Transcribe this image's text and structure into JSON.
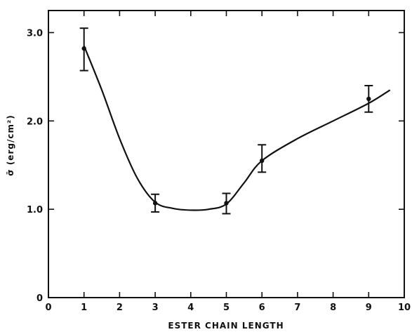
{
  "chart_data": {
    "type": "line",
    "title": "",
    "xlabel": "ESTER CHAIN LENGTH",
    "ylabel": "σ̄ (erg/cm²)",
    "xlim": [
      0,
      10
    ],
    "ylim": [
      0,
      3.25
    ],
    "x_ticks": [
      0,
      1,
      2,
      3,
      4,
      5,
      6,
      7,
      8,
      9,
      10
    ],
    "x_tick_labels": [
      "0",
      "1",
      "2",
      "3",
      "4",
      "5",
      "6",
      "7",
      "8",
      "9",
      "10"
    ],
    "y_ticks": [
      0,
      1.0,
      2.0,
      3.0
    ],
    "y_tick_labels": [
      "0",
      "1.0",
      "2.0",
      "3.0"
    ],
    "grid": false,
    "series": [
      {
        "points": [
          {
            "x": 1,
            "y": 2.82,
            "err_low": 2.57,
            "err_high": 3.05
          },
          {
            "x": 3,
            "y": 1.07,
            "err_low": 0.97,
            "err_high": 1.17
          },
          {
            "x": 5,
            "y": 1.07,
            "err_low": 0.95,
            "err_high": 1.18
          },
          {
            "x": 6,
            "y": 1.55,
            "err_low": 1.42,
            "err_high": 1.73
          },
          {
            "x": 9,
            "y": 2.25,
            "err_low": 2.1,
            "err_high": 2.4
          }
        ],
        "curve": [
          [
            1,
            2.85
          ],
          [
            1.5,
            2.35
          ],
          [
            2,
            1.8
          ],
          [
            2.5,
            1.35
          ],
          [
            3,
            1.08
          ],
          [
            3.5,
            1.01
          ],
          [
            4,
            0.99
          ],
          [
            4.5,
            1.0
          ],
          [
            5,
            1.06
          ],
          [
            5.5,
            1.3
          ],
          [
            6,
            1.55
          ],
          [
            7,
            1.8
          ],
          [
            8,
            2.0
          ],
          [
            9,
            2.2
          ],
          [
            9.6,
            2.35
          ]
        ]
      }
    ]
  }
}
